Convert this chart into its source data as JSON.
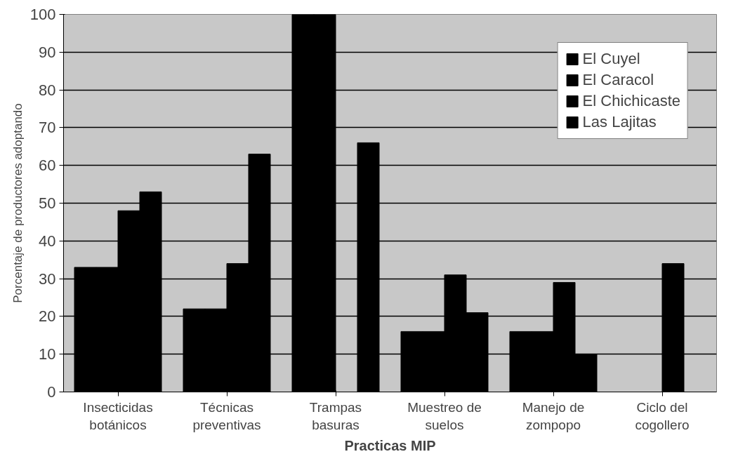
{
  "chart_data": {
    "type": "bar",
    "xlabel": "Practicas MIP",
    "ylabel": "Porcentaje de productores adoptando",
    "categories": [
      "Insecticidas\nbotánicos",
      "Técnicas\npreventivas",
      "Trampas\nbasuras",
      "Muestreo de\nsuelos",
      "Manejo de\nzompopo",
      "Ciclo del\ncogollero"
    ],
    "series": [
      {
        "name": "El Cuyel",
        "color": "#000000",
        "values": [
          33,
          22,
          100,
          16,
          16,
          0
        ]
      },
      {
        "name": "El Caracol",
        "color": "#000000",
        "values": [
          33,
          22,
          100,
          16,
          16,
          0
        ]
      },
      {
        "name": "El Chichicaste",
        "color": "#000000",
        "values": [
          48,
          34,
          0,
          31,
          29,
          34
        ]
      },
      {
        "name": "Las Lajitas",
        "color": "#000000",
        "values": [
          53,
          63,
          66,
          21,
          10,
          0
        ]
      }
    ],
    "ylim": [
      0,
      100
    ],
    "yticks": [
      0,
      10,
      20,
      30,
      40,
      50,
      60,
      70,
      80,
      90,
      100
    ],
    "grid": "y",
    "legend": "top right"
  }
}
